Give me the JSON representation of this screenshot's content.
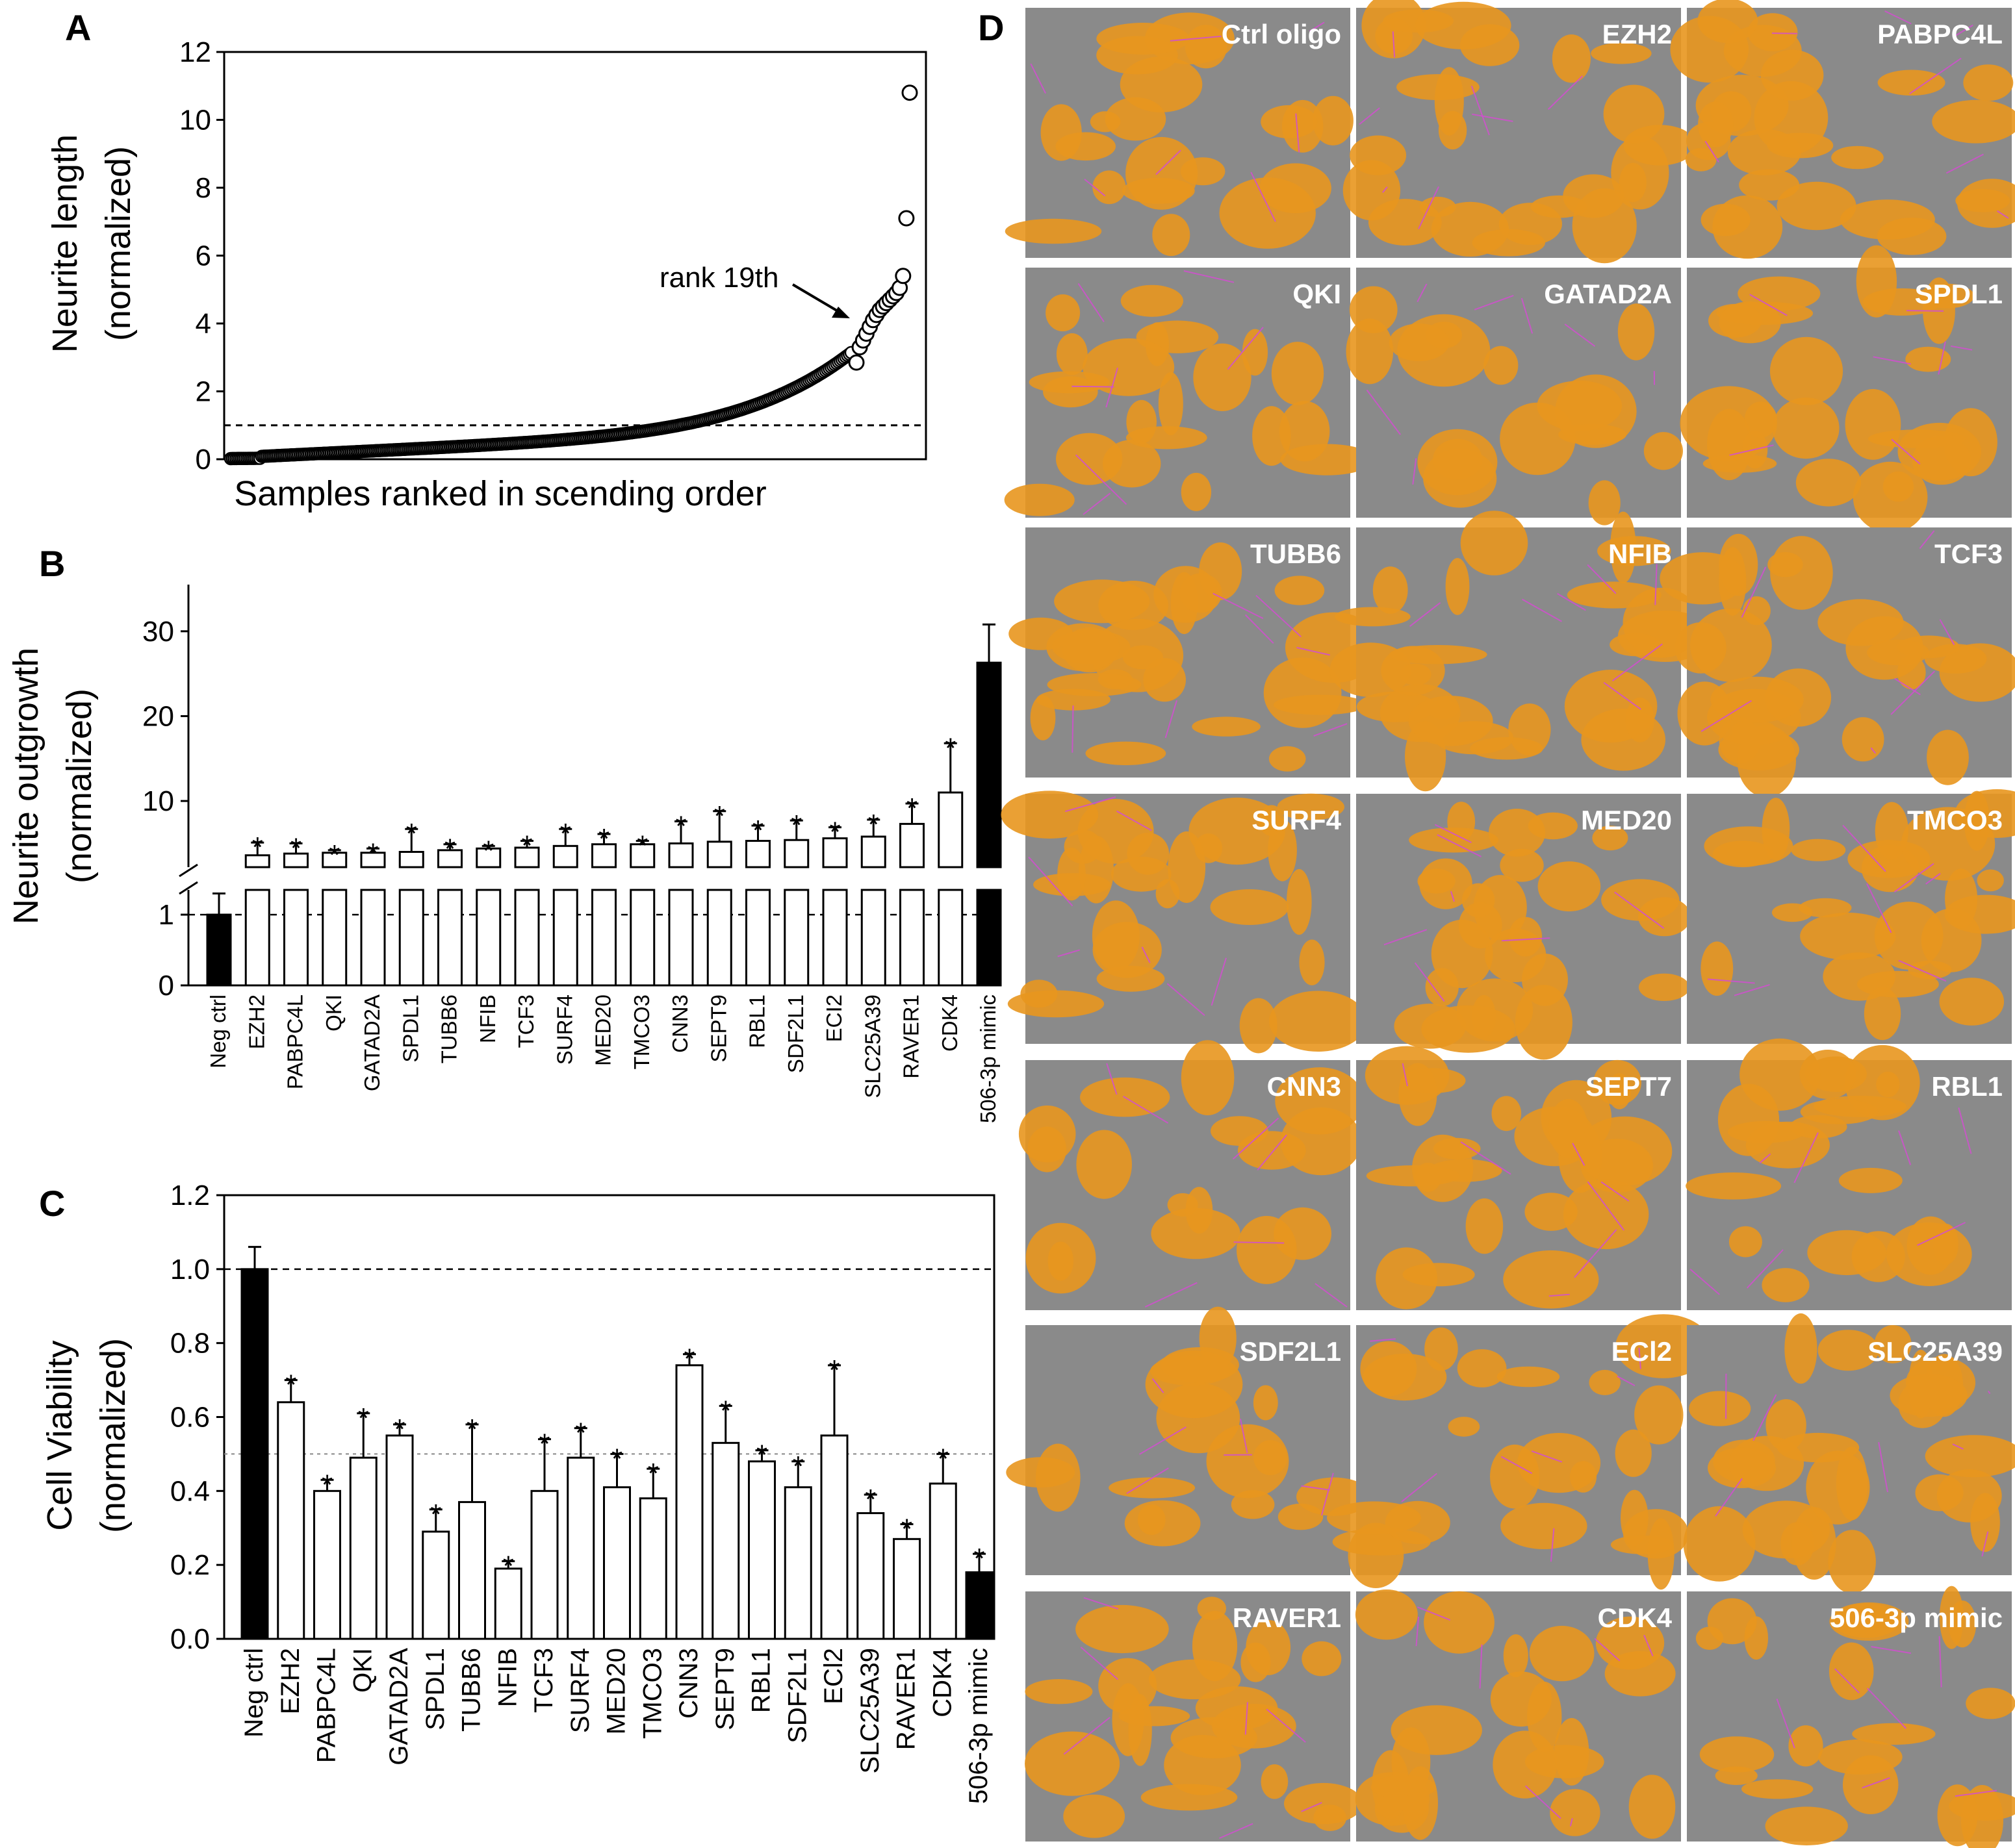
{
  "panel_letters": {
    "a": "A",
    "b": "B",
    "c": "C",
    "d": "D"
  },
  "chart_data": [
    {
      "id": "A",
      "type": "scatter",
      "ylabel_line1": "Neurite length",
      "ylabel_line2": "(normalized)",
      "xlabel": "Samples ranked in scending order",
      "ylim": [
        0,
        12
      ],
      "yticks": [
        "0",
        "2",
        "4",
        "6",
        "8",
        "10",
        "12"
      ],
      "reference_line": 1,
      "annotation": "rank 19th",
      "points": [
        2.85,
        3.3,
        3.5,
        3.7,
        3.9,
        4.1,
        4.25,
        4.4,
        4.5,
        4.6,
        4.7,
        4.8,
        4.9,
        5.05,
        5.4,
        7.1,
        10.8
      ]
    },
    {
      "id": "B",
      "type": "bar",
      "ylabel_line1": "Neurite outgrowth",
      "ylabel_line2": "(normalized)",
      "yticks_upper": [
        "10",
        "20",
        "30"
      ],
      "yticks_lower": [
        "0",
        "1"
      ],
      "reference_line": 1,
      "categories": [
        "Neg ctrl",
        "EZH2",
        "PABPC4L",
        "QKI",
        "GATAD2A",
        "SPDL1",
        "TUBB6",
        "NFIB",
        "TCF3",
        "SURF4",
        "MED20",
        "TMCO3",
        "CNN3",
        "SEPT9",
        "RBL1",
        "SDF2L1",
        "ECI2",
        "SLC25A39",
        "RAVER1",
        "CDK4",
        "506-3p mimic"
      ],
      "values": [
        1.0,
        3.6,
        3.8,
        3.9,
        3.9,
        4.0,
        4.2,
        4.4,
        4.5,
        4.7,
        4.9,
        4.9,
        5.0,
        5.2,
        5.3,
        5.4,
        5.6,
        5.8,
        7.3,
        11.0,
        26.3
      ],
      "errors": [
        0.3,
        1.5,
        1.2,
        0.3,
        0.5,
        2.7,
        0.7,
        0.3,
        0.8,
        2.0,
        1.2,
        0.4,
        2.6,
        3.6,
        1.8,
        2.3,
        1.3,
        2.0,
        2.4,
        5.8,
        4.5
      ],
      "significant": [
        false,
        true,
        true,
        true,
        true,
        true,
        true,
        true,
        true,
        true,
        true,
        true,
        true,
        true,
        true,
        true,
        true,
        true,
        true,
        true,
        false
      ],
      "star": "*",
      "filled": [
        true,
        false,
        false,
        false,
        false,
        false,
        false,
        false,
        false,
        false,
        false,
        false,
        false,
        false,
        false,
        false,
        false,
        false,
        false,
        false,
        true
      ]
    },
    {
      "id": "C",
      "type": "bar",
      "ylabel_line1": "Cell Viability",
      "ylabel_line2": "(normalized)",
      "ylim": [
        0,
        1.2
      ],
      "yticks": [
        "0.0",
        "0.2",
        "0.4",
        "0.6",
        "0.8",
        "1.0",
        "1.2"
      ],
      "reference_lines": [
        1.0,
        0.5
      ],
      "categories": [
        "Neg ctrl",
        "EZH2",
        "PABPC4L",
        "QKI",
        "GATAD2A",
        "SPDL1",
        "TUBB6",
        "NFIB",
        "TCF3",
        "SURF4",
        "MED20",
        "TMCO3",
        "CNN3",
        "SEPT9",
        "RBL1",
        "SDF2L1",
        "ECl2",
        "SLC25A39",
        "RAVER1",
        "CDK4",
        "506-3p mimic"
      ],
      "values": [
        1.0,
        0.64,
        0.4,
        0.49,
        0.55,
        0.29,
        0.37,
        0.19,
        0.4,
        0.49,
        0.41,
        0.38,
        0.74,
        0.53,
        0.48,
        0.41,
        0.55,
        0.34,
        0.27,
        0.42,
        0.18
      ],
      "errors": [
        0.06,
        0.06,
        0.03,
        0.12,
        0.03,
        0.06,
        0.21,
        0.02,
        0.14,
        0.08,
        0.09,
        0.08,
        0.03,
        0.1,
        0.03,
        0.07,
        0.19,
        0.05,
        0.04,
        0.08,
        0.05
      ],
      "significant": [
        false,
        true,
        true,
        true,
        true,
        true,
        true,
        true,
        true,
        true,
        true,
        true,
        true,
        true,
        true,
        true,
        true,
        true,
        true,
        true,
        true
      ],
      "star": "*",
      "filled": [
        true,
        false,
        false,
        false,
        false,
        false,
        false,
        false,
        false,
        false,
        false,
        false,
        false,
        false,
        false,
        false,
        false,
        false,
        false,
        false,
        true
      ]
    }
  ],
  "microscopy_tiles": [
    "Ctrl oligo",
    "EZH2",
    "PABPC4L",
    "QKI",
    "GATAD2A",
    "SPDL1",
    "TUBB6",
    "NFIB",
    "TCF3",
    "SURF4",
    "MED20",
    "TMCO3",
    "CNN3",
    "SEPT7",
    "RBL1",
    "SDF2L1",
    "ECl2",
    "SLC25A39",
    "RAVER1",
    "CDK4",
    "506-3p mimic"
  ],
  "colors": {
    "cell_orange": "#e8961e",
    "background_gray": "#8a8a8a",
    "neurite_magenta": "#d24fd0",
    "bar_black": "#000000"
  }
}
